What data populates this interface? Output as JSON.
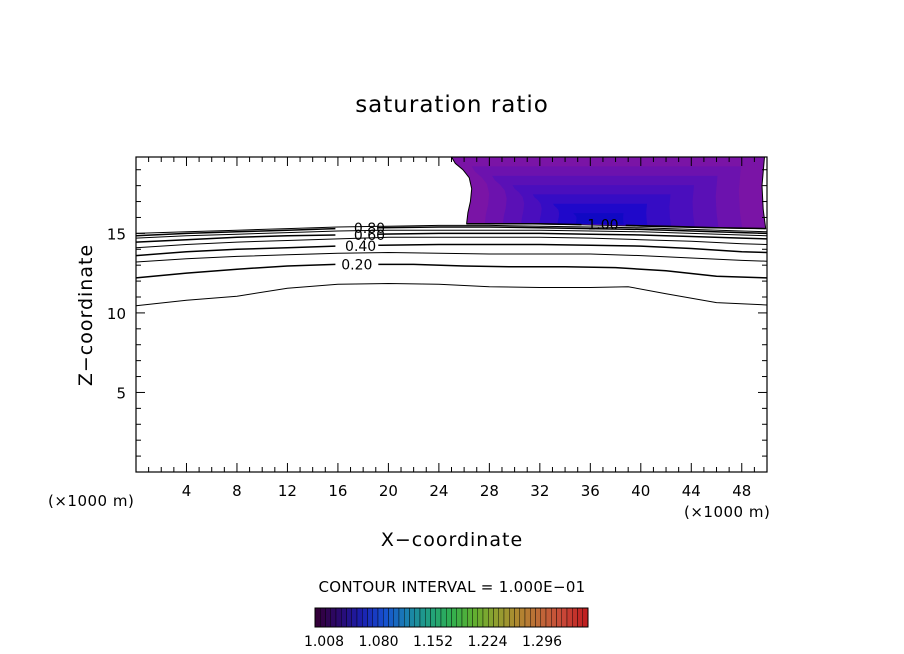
{
  "chart_data": {
    "type": "contour",
    "title": "saturation ratio",
    "xlabel": "X−coordinate",
    "ylabel": "Z−coordinate",
    "x_unit": "(×1000 m)",
    "z_unit": "(×1000 m)",
    "xlim": [
      0,
      50
    ],
    "ylim": [
      0,
      19.8
    ],
    "x_ticks": [
      4,
      8,
      12,
      16,
      20,
      24,
      28,
      32,
      36,
      40,
      44,
      48
    ],
    "y_ticks": [
      5,
      10,
      15
    ],
    "contour_interval_text": "CONTOUR INTERVAL = 1.000E−01",
    "contour_labels": [
      {
        "text": "0.80",
        "x": 18.5,
        "z": 15.35
      },
      {
        "text": "0.60",
        "x": 18.5,
        "z": 14.9
      },
      {
        "text": "0.40",
        "x": 17.8,
        "z": 14.2
      },
      {
        "text": "0.20",
        "x": 17.5,
        "z": 13.05
      },
      {
        "text": "1.00",
        "x": 37.0,
        "z": 15.55
      }
    ],
    "contours": [
      {
        "level": 0.1,
        "points": [
          [
            0,
            10.45
          ],
          [
            4,
            10.8
          ],
          [
            8,
            11.05
          ],
          [
            12,
            11.55
          ],
          [
            16,
            11.8
          ],
          [
            20,
            11.85
          ],
          [
            24,
            11.8
          ],
          [
            28,
            11.65
          ],
          [
            32,
            11.6
          ],
          [
            36,
            11.6
          ],
          [
            39,
            11.65
          ],
          [
            42,
            11.2
          ],
          [
            46,
            10.65
          ],
          [
            50,
            10.5
          ]
        ]
      },
      {
        "level": 0.2,
        "points": [
          [
            0,
            12.2
          ],
          [
            4,
            12.5
          ],
          [
            8,
            12.75
          ],
          [
            12,
            12.95
          ],
          [
            15.8,
            13.05
          ]
        ],
        "points2": [
          [
            19.2,
            13.05
          ],
          [
            22,
            13.05
          ],
          [
            26,
            12.95
          ],
          [
            30,
            12.9
          ],
          [
            34,
            12.9
          ],
          [
            38,
            12.85
          ],
          [
            42,
            12.65
          ],
          [
            46,
            12.3
          ],
          [
            50,
            12.2
          ]
        ]
      },
      {
        "level": 0.3,
        "points": [
          [
            0,
            13.2
          ],
          [
            4,
            13.4
          ],
          [
            8,
            13.55
          ],
          [
            12,
            13.65
          ],
          [
            16,
            13.75
          ],
          [
            20,
            13.8
          ],
          [
            24,
            13.75
          ],
          [
            28,
            13.7
          ],
          [
            32,
            13.7
          ],
          [
            36,
            13.7
          ],
          [
            40,
            13.6
          ],
          [
            44,
            13.45
          ],
          [
            48,
            13.3
          ],
          [
            50,
            13.25
          ]
        ]
      },
      {
        "level": 0.4,
        "points": [
          [
            0,
            13.6
          ],
          [
            4,
            13.85
          ],
          [
            8,
            14.0
          ],
          [
            12,
            14.1
          ],
          [
            15.8,
            14.2
          ]
        ],
        "points2": [
          [
            19.2,
            14.25
          ],
          [
            24,
            14.3
          ],
          [
            28,
            14.3
          ],
          [
            32,
            14.3
          ],
          [
            36,
            14.25
          ],
          [
            40,
            14.2
          ],
          [
            44,
            14.05
          ],
          [
            48,
            13.85
          ],
          [
            50,
            13.8
          ]
        ]
      },
      {
        "level": 0.5,
        "points": [
          [
            0,
            14.1
          ],
          [
            4,
            14.3
          ],
          [
            8,
            14.45
          ],
          [
            12,
            14.55
          ],
          [
            16,
            14.65
          ],
          [
            20,
            14.75
          ],
          [
            24,
            14.75
          ],
          [
            28,
            14.75
          ],
          [
            32,
            14.75
          ],
          [
            36,
            14.7
          ],
          [
            40,
            14.6
          ],
          [
            44,
            14.5
          ],
          [
            48,
            14.35
          ],
          [
            50,
            14.3
          ]
        ]
      },
      {
        "level": 0.6,
        "points": [
          [
            0,
            14.45
          ],
          [
            4,
            14.6
          ],
          [
            8,
            14.75
          ],
          [
            12,
            14.85
          ],
          [
            15.8,
            14.9
          ]
        ],
        "points2": [
          [
            19.2,
            14.95
          ],
          [
            24,
            15.0
          ],
          [
            28,
            15.0
          ],
          [
            32,
            15.0
          ],
          [
            36,
            14.95
          ],
          [
            40,
            14.9
          ],
          [
            44,
            14.8
          ],
          [
            48,
            14.7
          ],
          [
            50,
            14.65
          ]
        ]
      },
      {
        "level": 0.7,
        "points": [
          [
            0,
            14.7
          ],
          [
            4,
            14.85
          ],
          [
            8,
            14.95
          ],
          [
            12,
            15.05
          ],
          [
            16,
            15.15
          ],
          [
            20,
            15.2
          ],
          [
            24,
            15.2
          ],
          [
            28,
            15.2
          ],
          [
            32,
            15.2
          ],
          [
            36,
            15.15
          ],
          [
            40,
            15.1
          ],
          [
            44,
            15.0
          ],
          [
            48,
            14.9
          ],
          [
            50,
            14.85
          ]
        ]
      },
      {
        "level": 0.8,
        "points": [
          [
            0,
            14.85
          ],
          [
            4,
            15.0
          ],
          [
            8,
            15.1
          ],
          [
            12,
            15.2
          ],
          [
            15.8,
            15.3
          ]
        ],
        "points2": [
          [
            19.2,
            15.35
          ],
          [
            24,
            15.4
          ],
          [
            28,
            15.4
          ],
          [
            32,
            15.35
          ],
          [
            36,
            15.3
          ],
          [
            40,
            15.25
          ],
          [
            44,
            15.15
          ],
          [
            48,
            15.05
          ],
          [
            50,
            15.0
          ]
        ]
      },
      {
        "level": 0.9,
        "points": [
          [
            0,
            15.0
          ],
          [
            4,
            15.1
          ],
          [
            8,
            15.2
          ],
          [
            12,
            15.3
          ],
          [
            16,
            15.4
          ],
          [
            20,
            15.45
          ],
          [
            24,
            15.5
          ],
          [
            28,
            15.5
          ],
          [
            32,
            15.45
          ],
          [
            36,
            15.4
          ],
          [
            40,
            15.35
          ],
          [
            44,
            15.25
          ],
          [
            48,
            15.15
          ],
          [
            50,
            15.1
          ]
        ]
      },
      {
        "level": 1.0,
        "points": [
          [
            26.2,
            15.6
          ],
          [
            28,
            15.6
          ],
          [
            32,
            15.6
          ],
          [
            35.3,
            15.55
          ]
        ],
        "points2": [
          [
            38.8,
            15.5
          ],
          [
            42,
            15.45
          ],
          [
            46,
            15.35
          ],
          [
            49.9,
            15.3
          ]
        ]
      }
    ],
    "supersaturated_region": {
      "boundary": [
        [
          25.0,
          19.8
        ],
        [
          25.3,
          19.4
        ],
        [
          25.9,
          19.0
        ],
        [
          26.4,
          18.5
        ],
        [
          26.6,
          17.8
        ],
        [
          26.5,
          17.0
        ],
        [
          26.3,
          16.3
        ],
        [
          26.2,
          15.6
        ],
        [
          30,
          15.6
        ],
        [
          35,
          15.55
        ],
        [
          40,
          15.45
        ],
        [
          45,
          15.35
        ],
        [
          49.9,
          15.3
        ],
        [
          49.7,
          16.5
        ],
        [
          49.6,
          18
        ],
        [
          49.8,
          19.8
        ]
      ],
      "peak": [
        36.5,
        15.6
      ],
      "colors": [
        "#7a14a6",
        "#6c12ae",
        "#5a10b6",
        "#4a0ebd",
        "#360cc4",
        "#1f08ca",
        "#1008c4"
      ]
    },
    "colorbar": {
      "tick_labels": [
        "1.008",
        "1.080",
        "1.152",
        "1.224",
        "1.296"
      ],
      "colors": [
        "#33003a",
        "#2a0a70",
        "#1a20b0",
        "#1650d0",
        "#1a80b0",
        "#20a080",
        "#30b050",
        "#60b030",
        "#90a030",
        "#b08830",
        "#c06838",
        "#c84838",
        "#c02020"
      ]
    }
  }
}
